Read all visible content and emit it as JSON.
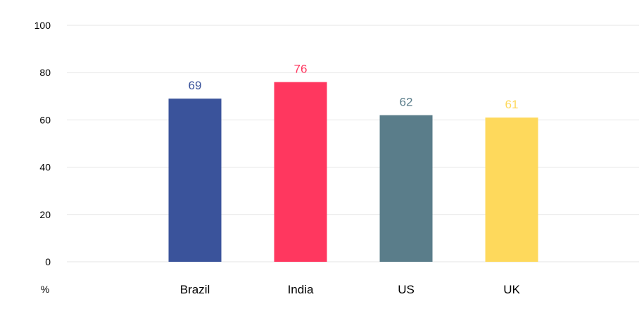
{
  "chart_data": {
    "type": "bar",
    "categories": [
      "Brazil",
      "India",
      "US",
      "UK"
    ],
    "values": [
      69,
      76,
      62,
      61
    ],
    "colors": [
      "#3a539b",
      "#ff375f",
      "#5a7d8a",
      "#fed95c"
    ],
    "data_labels": [
      "69",
      "76",
      "62",
      "61"
    ],
    "title": "",
    "xlabel": "",
    "ylabel": "%",
    "ylim": [
      0,
      100
    ],
    "yticks": [
      0,
      20,
      40,
      60,
      80,
      100
    ],
    "ytick_labels": [
      "0",
      "20",
      "40",
      "60",
      "80",
      "100"
    ],
    "grid": true,
    "legend": "none"
  }
}
